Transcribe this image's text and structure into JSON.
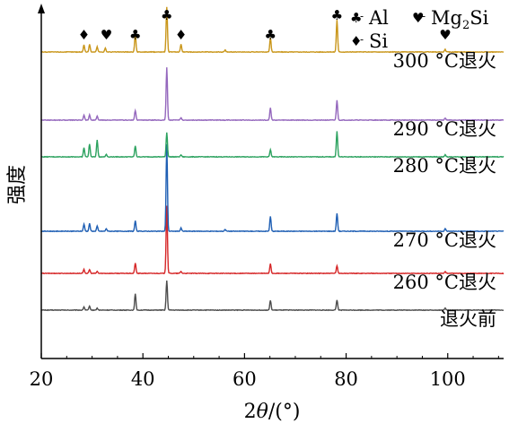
{
  "chart_data": {
    "type": "line",
    "title": "",
    "xlabel_prefix": "2",
    "xlabel_theta": "θ",
    "xlabel_suffix": "/(°)",
    "ylabel": "强度",
    "xlim": [
      20,
      111
    ],
    "xticks": [
      20,
      40,
      60,
      80,
      100
    ],
    "grid": false,
    "series": [
      {
        "name": "退火前",
        "color": "#4d4d4d",
        "peaks": [
          [
            28.4,
            0.5
          ],
          [
            29.5,
            0.6
          ],
          [
            31,
            0.3
          ],
          [
            38.5,
            2.5
          ],
          [
            44.7,
            4.6
          ],
          [
            65.1,
            1.5
          ],
          [
            78.2,
            1.6
          ],
          [
            99.5,
            0.3
          ]
        ]
      },
      {
        "name": "260 °C退火",
        "color": "#d62728",
        "peaks": [
          [
            28.4,
            0.6
          ],
          [
            29.5,
            0.6
          ],
          [
            31,
            0.3
          ],
          [
            38.5,
            1.6
          ],
          [
            44.7,
            10.5
          ],
          [
            47.5,
            0.3
          ],
          [
            65.1,
            1.5
          ],
          [
            78.2,
            1.2
          ],
          [
            99.5,
            0.3
          ]
        ]
      },
      {
        "name": "270 °C退火",
        "color": "#1f5fb4",
        "peaks": [
          [
            28.4,
            1.1
          ],
          [
            29.5,
            1.2
          ],
          [
            31,
            0.8
          ],
          [
            32.8,
            0.4
          ],
          [
            38.5,
            1.6
          ],
          [
            44.7,
            13.5
          ],
          [
            47.5,
            0.5
          ],
          [
            56.2,
            0.3
          ],
          [
            65.1,
            2.3
          ],
          [
            78.2,
            2.8
          ],
          [
            99.5,
            0.4
          ]
        ]
      },
      {
        "name": "280 °C退火",
        "color": "#2ca25f",
        "peaks": [
          [
            28.4,
            1.4
          ],
          [
            29.5,
            2.0
          ],
          [
            31,
            2.6
          ],
          [
            32.8,
            0.4
          ],
          [
            38.5,
            1.7
          ],
          [
            44.7,
            3.8
          ],
          [
            47.5,
            0.3
          ],
          [
            65.1,
            1.1
          ],
          [
            78.2,
            4.0
          ],
          [
            99.5,
            0.3
          ]
        ]
      },
      {
        "name": "290 °C退火",
        "color": "#9467bd",
        "peaks": [
          [
            28.4,
            0.8
          ],
          [
            29.5,
            0.8
          ],
          [
            31,
            0.6
          ],
          [
            38.5,
            1.5
          ],
          [
            44.7,
            8.2
          ],
          [
            47.5,
            0.4
          ],
          [
            65.1,
            1.9
          ],
          [
            78.2,
            3.1
          ],
          [
            99.5,
            0.3
          ]
        ]
      },
      {
        "name": "300 °C退火",
        "color": "#c9961a",
        "peaks": [
          [
            28.4,
            1.1
          ],
          [
            29.5,
            1.2
          ],
          [
            31,
            0.8
          ],
          [
            32.6,
            0.6
          ],
          [
            38.5,
            2.8
          ],
          [
            44.7,
            7.0
          ],
          [
            47.5,
            1.2
          ],
          [
            56.2,
            0.3
          ],
          [
            65.1,
            2.2
          ],
          [
            78.2,
            5.0
          ],
          [
            99.5,
            0.4
          ]
        ]
      }
    ],
    "markers": [
      {
        "symbol": "♦",
        "x": 28.4
      },
      {
        "symbol": "♥",
        "x": 32.8
      },
      {
        "symbol": "♣",
        "x": 38.5
      },
      {
        "symbol": "♣",
        "x": 44.7
      },
      {
        "symbol": "♦",
        "x": 47.5
      },
      {
        "symbol": "♣",
        "x": 65.1
      },
      {
        "symbol": "♣",
        "x": 78.2
      },
      {
        "symbol": "♥",
        "x": 99.5
      }
    ],
    "legend": {
      "placement": "top-right",
      "items": [
        {
          "symbol": "♣",
          "label": "Al",
          "sub": ""
        },
        {
          "symbol": "♥",
          "label": "Mg",
          "sub": "2",
          "label_after": "Si"
        },
        {
          "symbol": "♦",
          "label": "Si",
          "sub": ""
        }
      ]
    }
  }
}
